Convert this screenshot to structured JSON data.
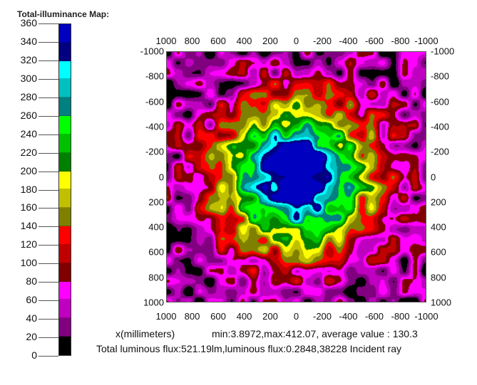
{
  "chart_data": {
    "type": "heatmap",
    "title": "Total-illuminance Map:",
    "xlabel": "x(millimeters)",
    "x_ticks": [
      "1000",
      "800",
      "600",
      "400",
      "200",
      "0",
      "-200",
      "-400",
      "-600",
      "-800",
      "-1000"
    ],
    "y_ticks": [
      "-1000",
      "-800",
      "-600",
      "-400",
      "-200",
      "0",
      "200",
      "400",
      "600",
      "800",
      "1000"
    ],
    "xlim": [
      1000,
      -1000
    ],
    "ylim": [
      -1000,
      1000
    ],
    "colorbar": {
      "ticks": [
        "360",
        "340",
        "320",
        "300",
        "280",
        "260",
        "240",
        "220",
        "200",
        "180",
        "160",
        "140",
        "120",
        "100",
        "80",
        "60",
        "40",
        "20",
        "0"
      ],
      "range": [
        0,
        360
      ],
      "step": 20,
      "colors_top_to_bottom": [
        "#0000c0",
        "#000080",
        "#00ffff",
        "#00c0c0",
        "#008080",
        "#00ff00",
        "#00c000",
        "#008000",
        "#ffff00",
        "#c0c000",
        "#808000",
        "#ff0000",
        "#c00000",
        "#800000",
        "#ff00ff",
        "#c000c0",
        "#800080",
        "#000000"
      ]
    },
    "peak_center_mm": [
      0,
      0
    ],
    "stats": "min:3.8972,max:412.07,  average value : 130.3",
    "flux": "Total luminous flux:521.19lm,luminous flux:0.2848,38228 Incident ray"
  }
}
